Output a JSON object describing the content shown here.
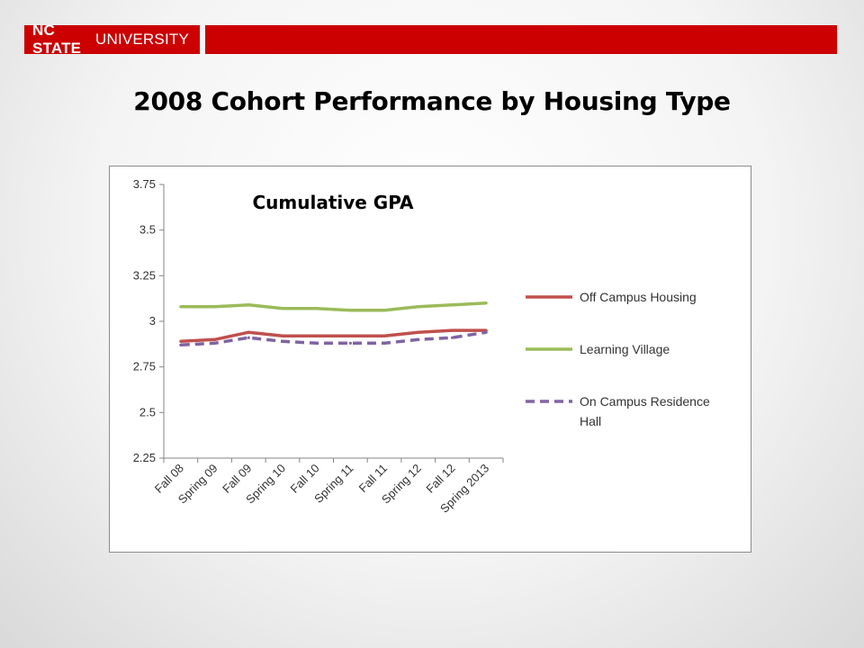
{
  "header": {
    "brand_bold": "NC STATE",
    "brand_rest": "UNIVERSITY",
    "brand_color": "#cc0000"
  },
  "slide": {
    "title": "2008 Cohort Performance by Housing Type"
  },
  "chart_data": {
    "type": "line",
    "title": "Cumulative GPA",
    "xlabel": "",
    "ylabel": "",
    "categories": [
      "Fall 08",
      "Spring 09",
      "Fall 09",
      "Spring 10",
      "Fall 10",
      "Spring 11",
      "Fall 11",
      "Spring 12",
      "Fall 12",
      "Spring 2013"
    ],
    "ylim": [
      2.25,
      3.75
    ],
    "yticks": [
      "3.75",
      "3.5",
      "3.25",
      "3",
      "2.75",
      "2.5",
      "2.25"
    ],
    "grid": false,
    "legend_position": "right",
    "series": [
      {
        "name": "Off Campus Housing",
        "color": "#c0504d",
        "dash": "solid",
        "values": [
          2.89,
          2.9,
          2.94,
          2.92,
          2.92,
          2.92,
          2.92,
          2.94,
          2.95,
          2.95
        ]
      },
      {
        "name": "Learning Village",
        "color": "#9bbb59",
        "dash": "solid",
        "values": [
          3.08,
          3.08,
          3.09,
          3.07,
          3.07,
          3.06,
          3.06,
          3.08,
          3.09,
          3.1
        ]
      },
      {
        "name": "On Campus Residence Hall",
        "color": "#8064a2",
        "dash": "dashed",
        "values": [
          2.87,
          2.88,
          2.91,
          2.89,
          2.88,
          2.88,
          2.88,
          2.9,
          2.91,
          2.94
        ]
      }
    ]
  }
}
